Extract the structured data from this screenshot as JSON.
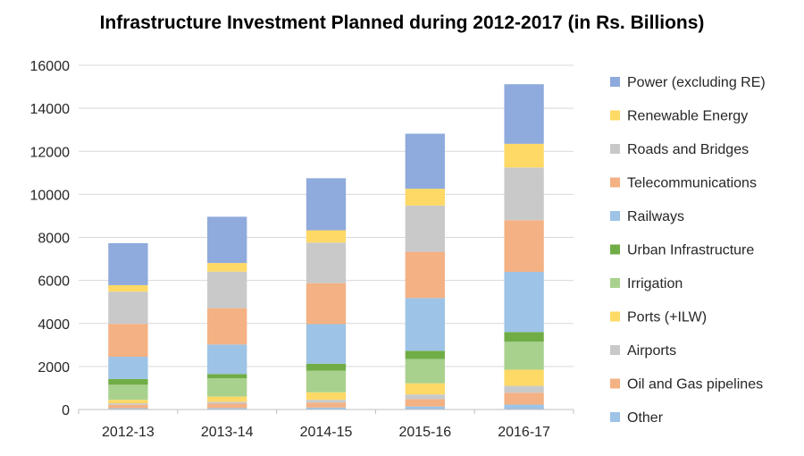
{
  "chart_data": {
    "type": "bar",
    "stacked": true,
    "title": "Infrastructure Investment Planned during 2012-2017 (in Rs. Billions)",
    "xlabel": "",
    "ylabel": "",
    "categories": [
      "2012-13",
      "2013-14",
      "2014-15",
      "2015-16",
      "2016-17"
    ],
    "ylim": [
      0,
      16000
    ],
    "yticks": [
      0,
      2000,
      4000,
      6000,
      8000,
      10000,
      12000,
      14000,
      16000
    ],
    "grid": true,
    "legend_position": "right",
    "series": [
      {
        "name": "Other",
        "color": "#9dc3e6",
        "values": [
          60,
          70,
          90,
          140,
          230
        ]
      },
      {
        "name": "Oil and Gas pipelines",
        "color": "#f4b183",
        "values": [
          160,
          200,
          230,
          340,
          550
        ]
      },
      {
        "name": "Airports",
        "color": "#c9c9c9",
        "values": [
          70,
          90,
          130,
          220,
          320
        ]
      },
      {
        "name": "Ports (+ILW)",
        "color": "#ffd966",
        "values": [
          160,
          240,
          350,
          520,
          750
        ]
      },
      {
        "name": "Irrigation",
        "color": "#a9d18e",
        "values": [
          700,
          850,
          1000,
          1130,
          1300
        ]
      },
      {
        "name": "Urban Infrastructure",
        "color": "#70ad47",
        "values": [
          270,
          200,
          330,
          380,
          450
        ]
      },
      {
        "name": "Railways",
        "color": "#9dc3e6",
        "values": [
          1030,
          1370,
          1840,
          2450,
          2800
        ]
      },
      {
        "name": "Telecommunications",
        "color": "#f4b183",
        "values": [
          1530,
          1690,
          1900,
          2150,
          2400
        ]
      },
      {
        "name": "Roads and Bridges",
        "color": "#c9c9c9",
        "values": [
          1500,
          1700,
          1890,
          2150,
          2450
        ]
      },
      {
        "name": "Renewable Energy",
        "color": "#ffd966",
        "values": [
          300,
          400,
          570,
          780,
          1100
        ]
      },
      {
        "name": "Power (excluding RE)",
        "color": "#8faadc",
        "values": [
          1950,
          2150,
          2420,
          2560,
          2770
        ]
      }
    ]
  }
}
